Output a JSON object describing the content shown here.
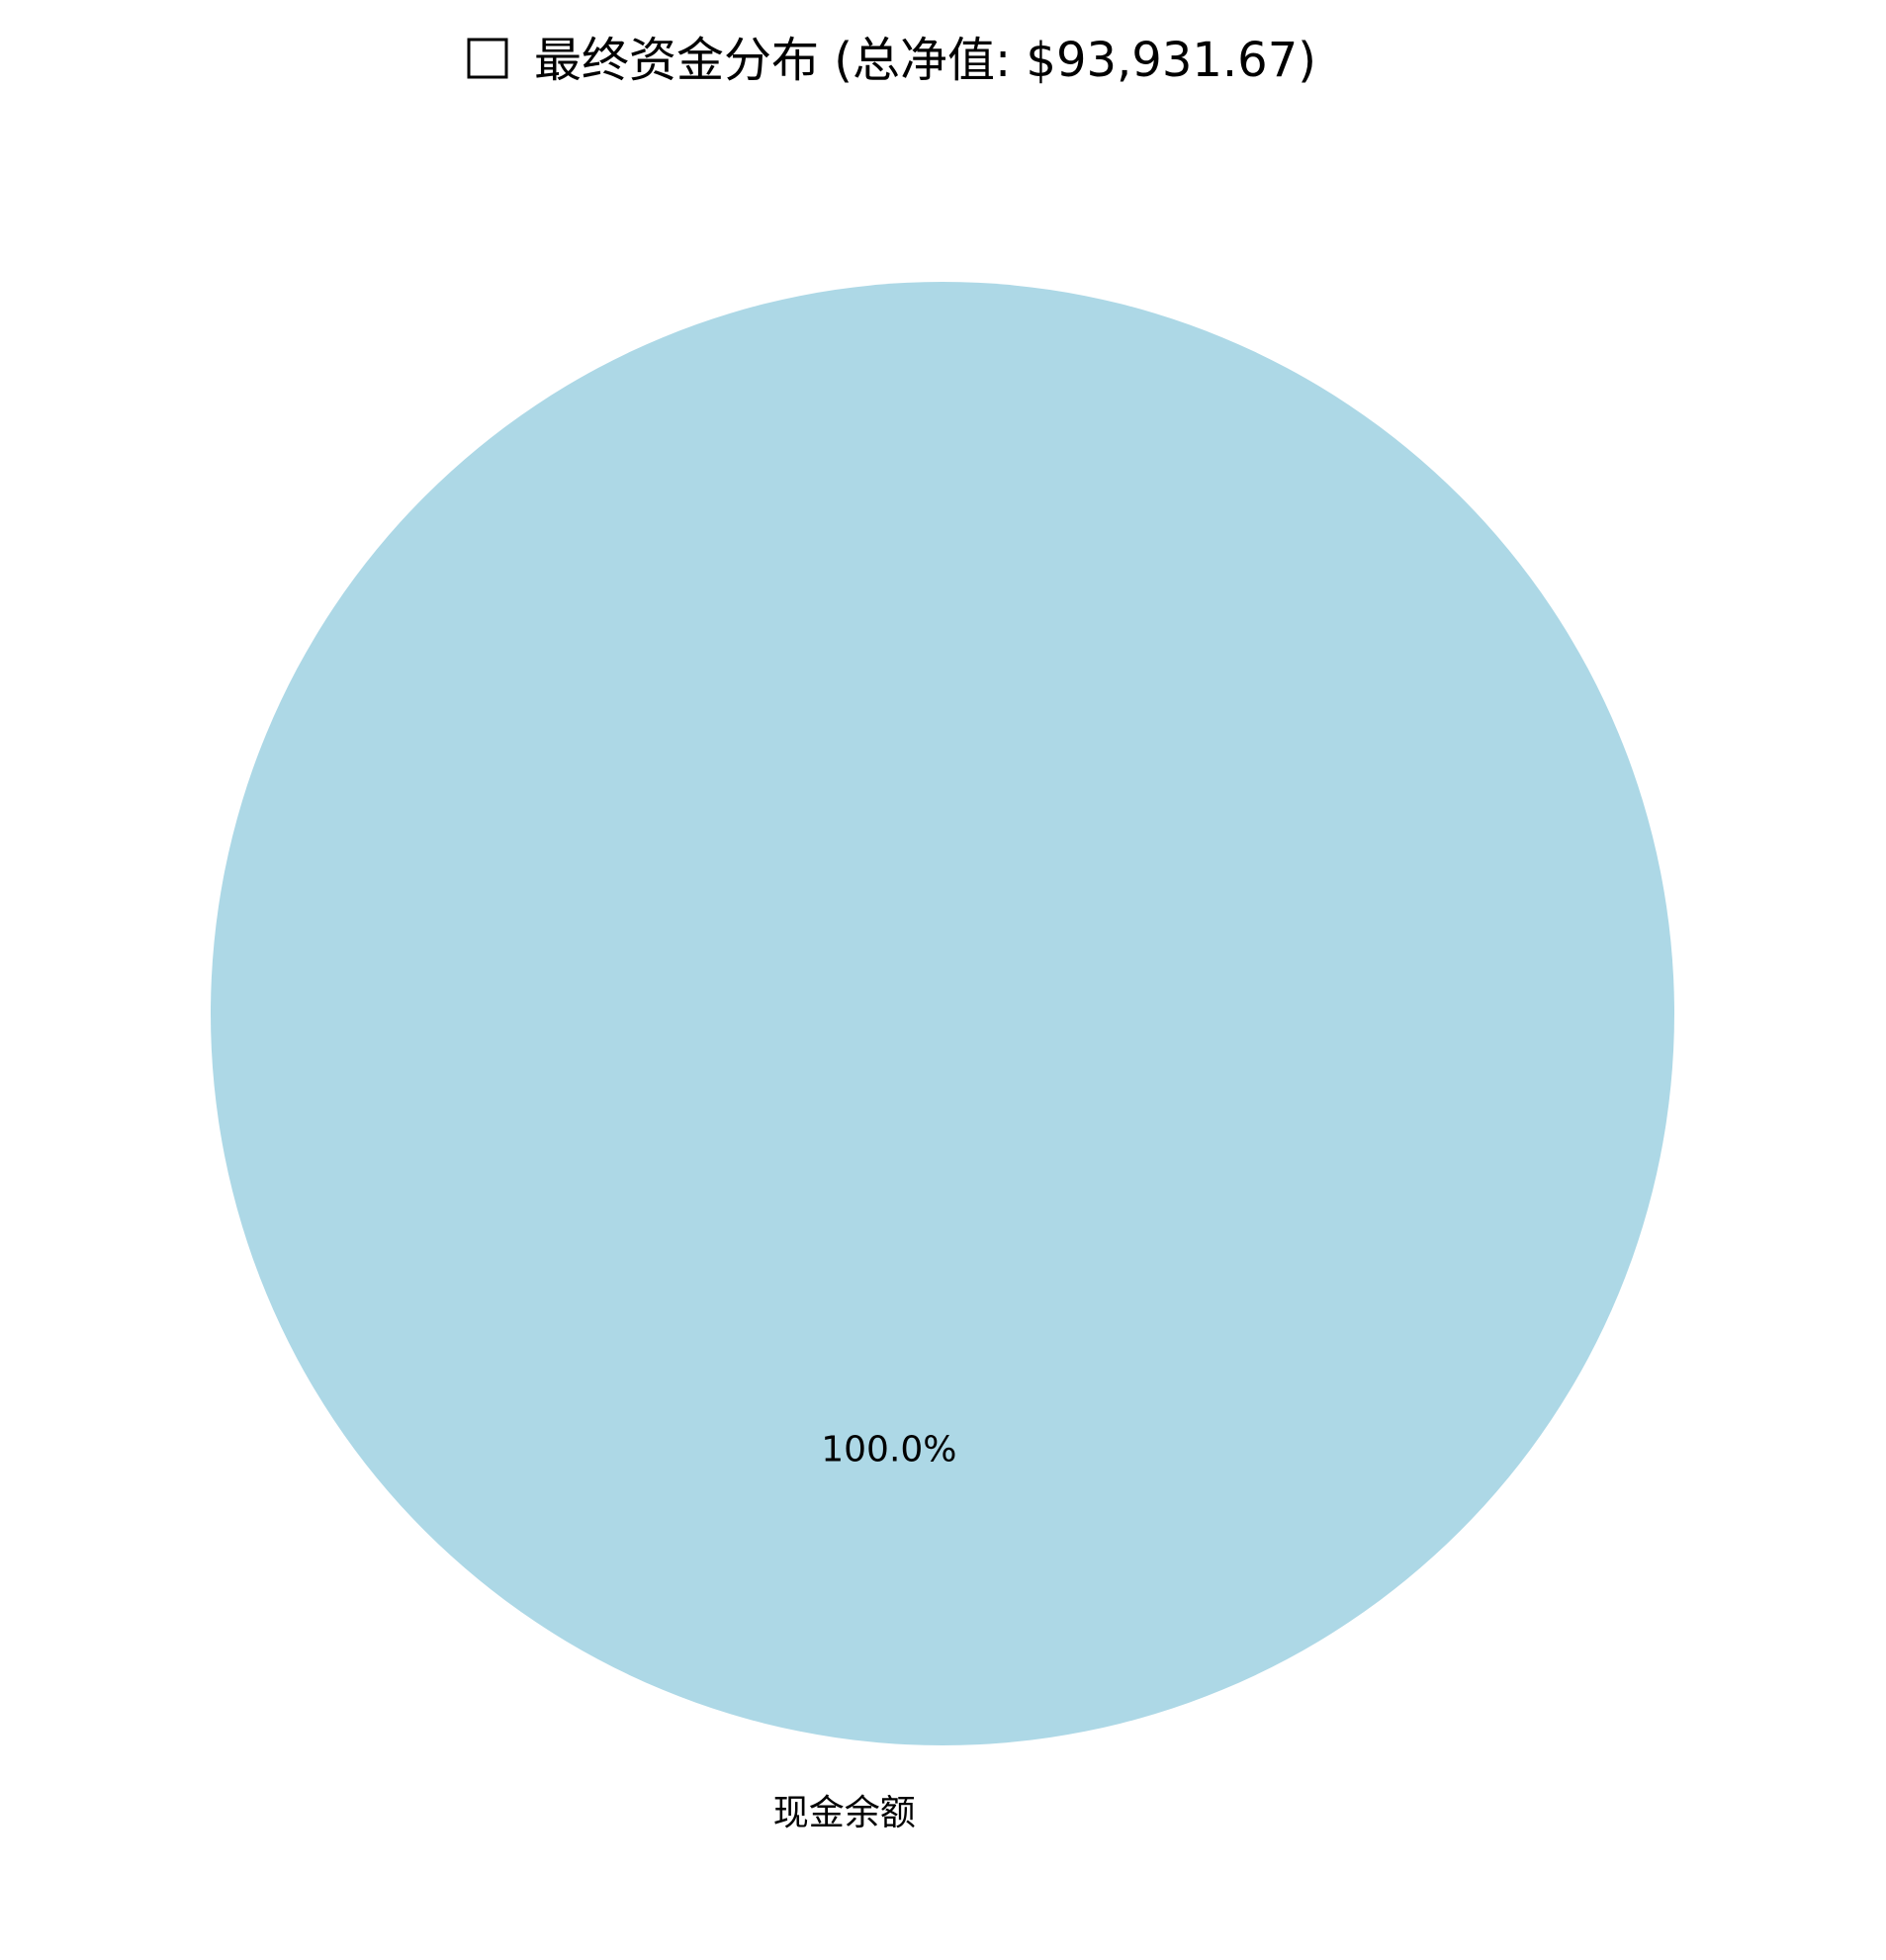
{
  "chart_data": {
    "type": "pie",
    "title_icon": "square-box-icon",
    "title": "最终资金分布 (总净值: $93,931.67)",
    "categories": [
      "现金余额"
    ],
    "values": [
      100.0
    ],
    "percent_labels": [
      "100.0%"
    ],
    "colors": [
      "#add8e6"
    ],
    "legend": "none",
    "grid": false
  }
}
